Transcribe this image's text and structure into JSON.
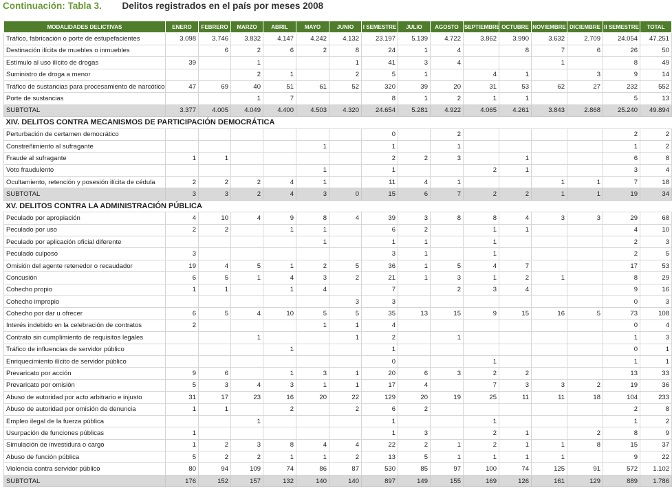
{
  "header": {
    "label": "Continuación: Tabla 3.",
    "title": "Delitos registrados en el país por meses 2008"
  },
  "table": {
    "columns": [
      "MODALIDADES DELICTIVAS",
      "ENERO",
      "FEBRERO",
      "MARZO",
      "ABRIL",
      "MAYO",
      "JUNIO",
      "I SEMESTRE",
      "JULIO",
      "AGOSTO",
      "SEPTIEMBRE",
      "OCTUBRE",
      "NOVIEMBRE",
      "DICIEMBRE",
      "II SEMESTRE",
      "TOTAL"
    ],
    "groups": [
      {
        "rows": [
          [
            "Tráfico, fabricación o porte de estupefacientes",
            "3.098",
            "3.746",
            "3.832",
            "4.147",
            "4.242",
            "4.132",
            "23.197",
            "5.139",
            "4.722",
            "3.862",
            "3.990",
            "3.632",
            "2.709",
            "24.054",
            "47.251"
          ],
          [
            "Destinación ilícita de muebles o inmuebles",
            null,
            6,
            2,
            6,
            2,
            8,
            24,
            1,
            4,
            null,
            8,
            7,
            6,
            26,
            50
          ],
          [
            "Estímulo al uso ilícito de drogas",
            39,
            null,
            1,
            null,
            null,
            1,
            41,
            3,
            4,
            null,
            null,
            1,
            null,
            8,
            49
          ],
          [
            "Suministro de droga a menor",
            null,
            null,
            2,
            1,
            null,
            2,
            5,
            1,
            null,
            4,
            1,
            null,
            3,
            9,
            14
          ],
          [
            "Tráfico de sustancias para procesamiento de narcóticos",
            47,
            69,
            40,
            51,
            61,
            52,
            320,
            39,
            20,
            31,
            53,
            62,
            27,
            232,
            552
          ],
          [
            "Porte de sustancias",
            null,
            null,
            1,
            7,
            null,
            null,
            8,
            1,
            2,
            1,
            1,
            null,
            null,
            5,
            13
          ]
        ],
        "subtotal": [
          "SUBTOTAL",
          "3.377",
          "4.005",
          "4.049",
          "4.400",
          "4.503",
          "4.320",
          "24.654",
          "5.281",
          "4.922",
          "4.065",
          "4.261",
          "3.843",
          "2.868",
          "25.240",
          "49.894"
        ]
      },
      {
        "heading": "XIV. DELITOS CONTRA MECANISMOS DE PARTICIPACIÓN DEMOCRÁTICA",
        "rows": [
          [
            "Perturbación de certamen democrático",
            null,
            null,
            null,
            null,
            null,
            null,
            0,
            null,
            2,
            null,
            null,
            null,
            null,
            2,
            2
          ],
          [
            "Constreñimiento al sufragante",
            null,
            null,
            null,
            null,
            1,
            null,
            1,
            null,
            1,
            null,
            null,
            null,
            null,
            1,
            2
          ],
          [
            "Fraude al sufragante",
            1,
            1,
            null,
            null,
            null,
            null,
            2,
            2,
            3,
            null,
            1,
            null,
            null,
            6,
            8
          ],
          [
            "Voto fraudulento",
            null,
            null,
            null,
            null,
            1,
            null,
            1,
            null,
            null,
            2,
            1,
            null,
            null,
            3,
            4
          ],
          [
            "Ocultamiento, retención y posesión ilícita de cédula",
            2,
            2,
            2,
            4,
            1,
            null,
            11,
            4,
            1,
            null,
            null,
            1,
            1,
            7,
            18
          ]
        ],
        "subtotal": [
          "SUBTOTAL",
          3,
          3,
          2,
          4,
          3,
          0,
          15,
          6,
          7,
          2,
          2,
          1,
          1,
          19,
          34
        ]
      },
      {
        "heading": "XV. DELITOS CONTRA LA ADMINISTRACIÓN PÚBLICA",
        "rows": [
          [
            "Peculado por apropiación",
            4,
            10,
            4,
            9,
            8,
            4,
            39,
            3,
            8,
            8,
            4,
            3,
            3,
            29,
            68
          ],
          [
            "Peculado por uso",
            2,
            2,
            null,
            1,
            1,
            null,
            6,
            2,
            null,
            1,
            1,
            null,
            null,
            4,
            10
          ],
          [
            "Peculado por aplicación oficial diferente",
            null,
            null,
            null,
            null,
            1,
            null,
            1,
            1,
            null,
            1,
            null,
            null,
            null,
            2,
            3
          ],
          [
            "Peculado culposo",
            3,
            null,
            null,
            null,
            null,
            null,
            3,
            1,
            null,
            1,
            null,
            null,
            null,
            2,
            5
          ],
          [
            "Omisión del agente retenedor o recaudador",
            19,
            4,
            5,
            1,
            2,
            5,
            36,
            1,
            5,
            4,
            7,
            null,
            null,
            17,
            53
          ],
          [
            "Concusión",
            6,
            5,
            1,
            4,
            3,
            2,
            21,
            1,
            3,
            1,
            2,
            1,
            null,
            8,
            29
          ],
          [
            "Cohecho propio",
            1,
            1,
            null,
            1,
            4,
            null,
            7,
            null,
            2,
            3,
            4,
            null,
            null,
            9,
            16
          ],
          [
            "Cohecho impropio",
            null,
            null,
            null,
            null,
            null,
            3,
            3,
            null,
            null,
            null,
            null,
            null,
            null,
            0,
            3
          ],
          [
            "Cohecho por dar u ofrecer",
            6,
            5,
            4,
            10,
            5,
            5,
            35,
            13,
            15,
            9,
            15,
            16,
            5,
            73,
            108
          ],
          [
            "Interés indebido en la celebración de contratos",
            2,
            null,
            null,
            null,
            1,
            1,
            4,
            null,
            null,
            null,
            null,
            null,
            null,
            0,
            4
          ],
          [
            "Contrato sin cumplimiento de requisitos legales",
            null,
            null,
            1,
            null,
            null,
            1,
            2,
            null,
            1,
            null,
            null,
            null,
            null,
            1,
            3
          ],
          [
            "Tráfico de influencias de servidor público",
            null,
            null,
            null,
            1,
            null,
            null,
            1,
            null,
            null,
            null,
            null,
            null,
            null,
            0,
            1
          ],
          [
            "Enriquecimiento ilícito de servidor público",
            null,
            null,
            null,
            null,
            null,
            null,
            0,
            null,
            null,
            1,
            null,
            null,
            null,
            1,
            1
          ],
          [
            "Prevaricato por acción",
            9,
            6,
            null,
            1,
            3,
            1,
            20,
            6,
            3,
            2,
            2,
            null,
            null,
            13,
            33
          ],
          [
            "Prevaricato por omisión",
            5,
            3,
            4,
            3,
            1,
            1,
            17,
            4,
            null,
            7,
            3,
            3,
            2,
            19,
            36
          ],
          [
            "Abuso de autoridad por acto arbitrario e injusto",
            31,
            17,
            23,
            16,
            20,
            22,
            129,
            20,
            19,
            25,
            11,
            11,
            18,
            104,
            233
          ],
          [
            "Abuso de autoridad por omisión de denuncia",
            1,
            1,
            null,
            2,
            null,
            2,
            6,
            2,
            null,
            null,
            null,
            null,
            null,
            2,
            8
          ],
          [
            "Empleo ilegal de la fuerza pública",
            null,
            null,
            1,
            null,
            null,
            null,
            1,
            null,
            null,
            1,
            null,
            null,
            null,
            1,
            2
          ],
          [
            "Usurpación de funciones públicas",
            1,
            null,
            null,
            null,
            null,
            null,
            1,
            3,
            null,
            2,
            1,
            null,
            2,
            8,
            9
          ],
          [
            "Simulación de investidura o cargo",
            1,
            2,
            3,
            8,
            4,
            4,
            22,
            2,
            1,
            2,
            1,
            1,
            8,
            15,
            37
          ],
          [
            "Abuso de función pública",
            5,
            2,
            2,
            1,
            1,
            2,
            13,
            5,
            1,
            1,
            1,
            1,
            null,
            9,
            22
          ],
          [
            "Violencia contra servidor público",
            80,
            94,
            109,
            74,
            86,
            87,
            530,
            85,
            97,
            100,
            74,
            125,
            91,
            572,
            "1.102"
          ]
        ],
        "subtotal": [
          "SUBTOTAL",
          176,
          152,
          157,
          132,
          140,
          140,
          897,
          149,
          155,
          169,
          126,
          161,
          129,
          889,
          "1.786"
        ]
      }
    ]
  }
}
